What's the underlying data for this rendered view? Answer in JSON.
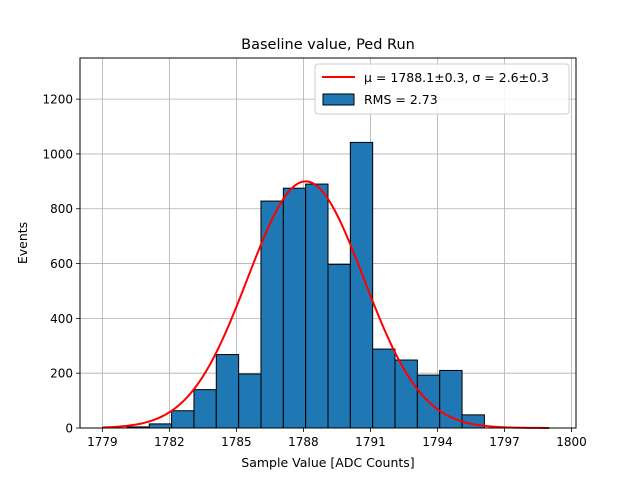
{
  "chart_data": {
    "type": "bar",
    "title": "Baseline value, Ped Run",
    "xlabel": "Sample Value [ADC Counts]",
    "ylabel": "Events",
    "xlim": [
      1778.0,
      1800.2
    ],
    "ylim": [
      0,
      1350
    ],
    "x_ticks": [
      1779,
      1782,
      1785,
      1788,
      1791,
      1794,
      1797,
      1800
    ],
    "y_ticks": [
      0,
      200,
      400,
      600,
      800,
      1000,
      1200
    ],
    "grid": true,
    "legend_position": "top-right",
    "bin_width": 1.0,
    "histogram": {
      "name": "RMS = 2.73",
      "color": "#1f77b4",
      "bin_left": [
        1780.1,
        1781.1,
        1782.1,
        1783.1,
        1784.1,
        1785.1,
        1786.1,
        1787.1,
        1788.1,
        1789.1,
        1790.1,
        1791.1,
        1792.1,
        1793.1,
        1794.1,
        1795.1
      ],
      "values": [
        4,
        15,
        63,
        140,
        268,
        197,
        828,
        875,
        890,
        597,
        1042,
        288,
        248,
        193,
        210,
        48
      ]
    },
    "fit": {
      "name": "μ = 1788.1±0.3, σ = 2.6±0.3",
      "color": "#ff0000",
      "mu": 1788.1,
      "sigma": 2.6,
      "amplitude": 900,
      "x_range": [
        1779.0,
        1799.0
      ]
    }
  }
}
